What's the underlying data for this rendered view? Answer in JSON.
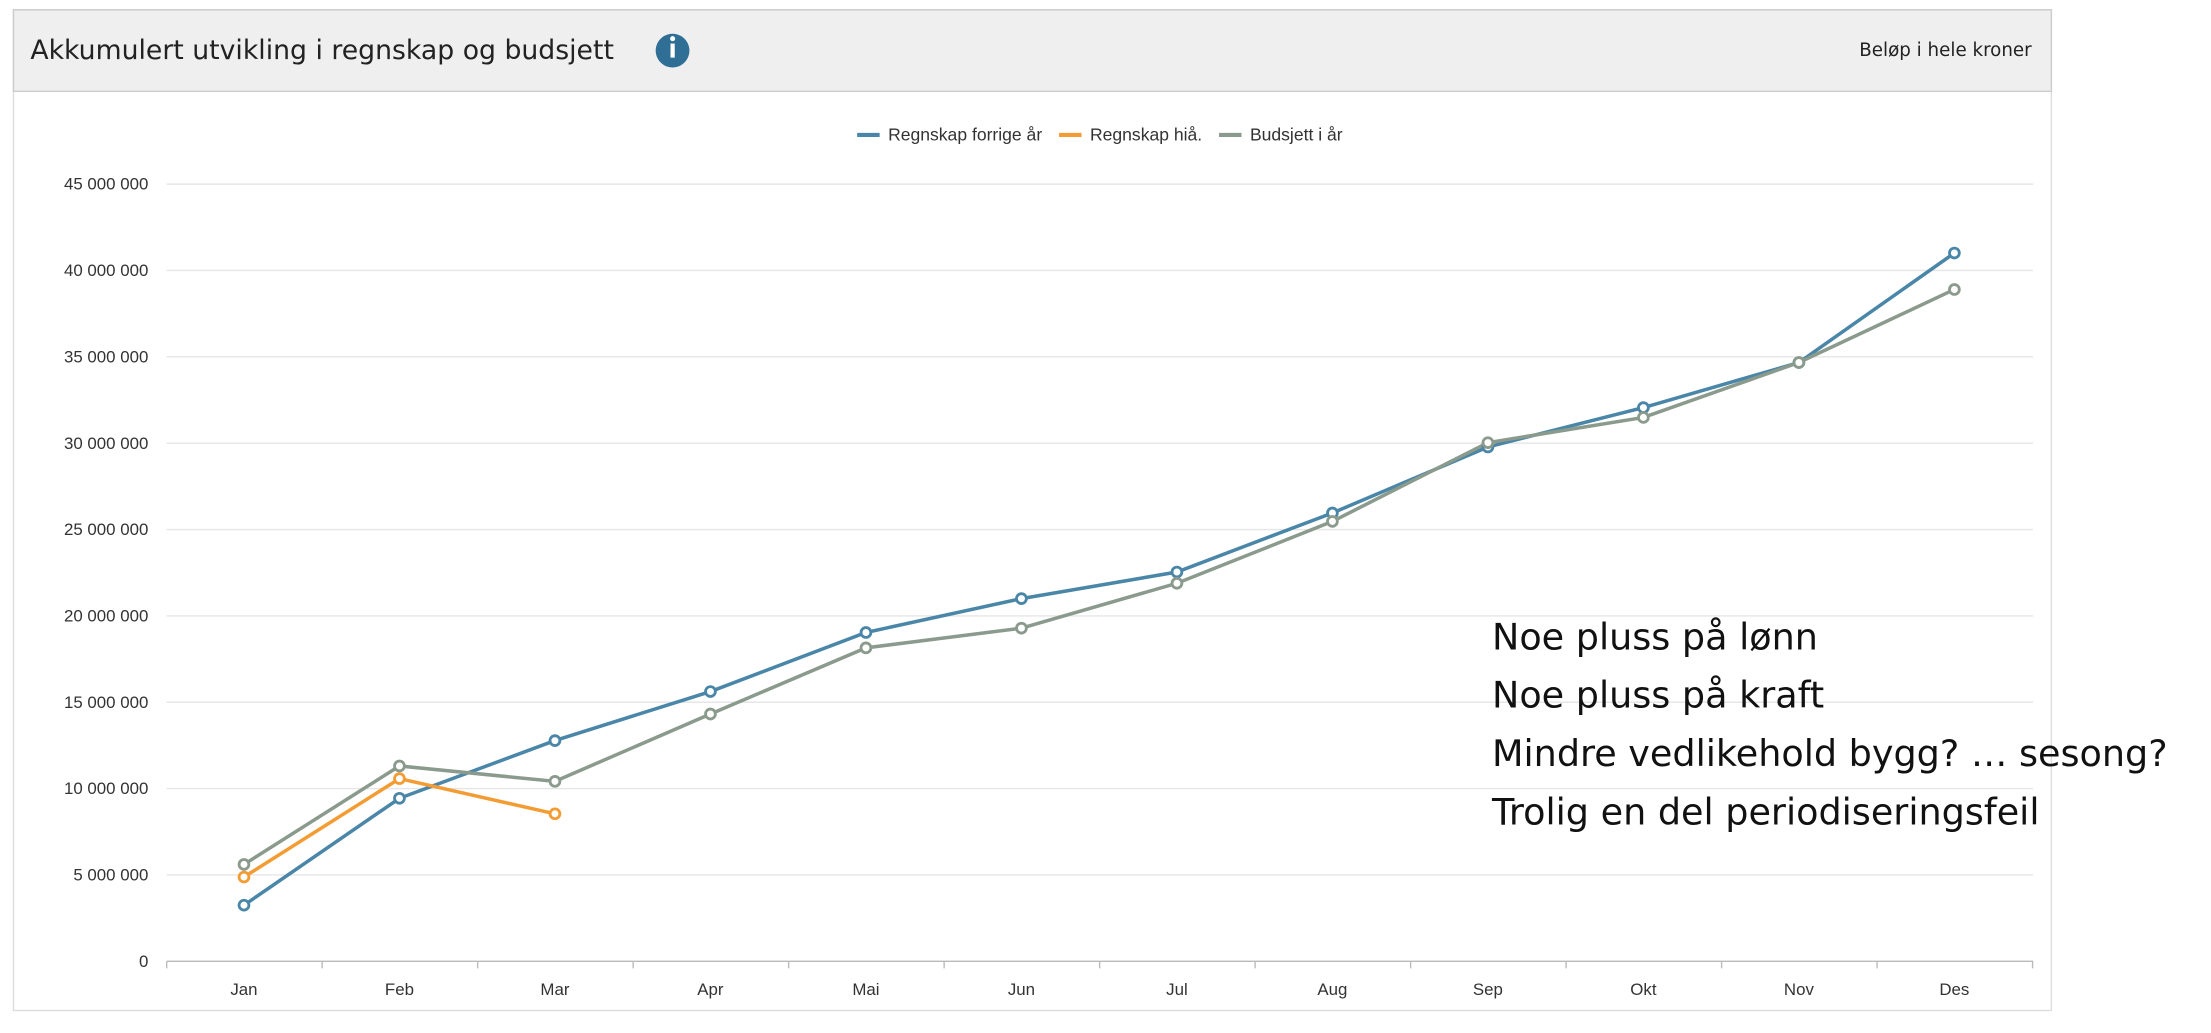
{
  "header": {
    "title": "Akkumulert utvikling i regnskap og budsjett",
    "unit_note": "Beløp i hele kroner"
  },
  "chart_data": {
    "type": "line",
    "categories": [
      "Jan",
      "Feb",
      "Mar",
      "Apr",
      "Mai",
      "Jun",
      "Jul",
      "Aug",
      "Sep",
      "Okt",
      "Nov",
      "Des"
    ],
    "series": [
      {
        "name": "Regnskap forrige år",
        "color": "#4a86a8",
        "values": [
          3250000,
          9440000,
          12780000,
          15620000,
          19040000,
          21000000,
          22540000,
          25960000,
          29780000,
          32060000,
          34670000,
          41010000
        ]
      },
      {
        "name": "Regnskap hiå.",
        "color": "#f39c34",
        "values": [
          4880000,
          10580000,
          8540000,
          null,
          null,
          null,
          null,
          null,
          null,
          null,
          null,
          null
        ]
      },
      {
        "name": "Budsjett i år",
        "color": "#8a9a8c",
        "values": [
          5610000,
          11310000,
          10420000,
          14320000,
          18150000,
          19290000,
          21890000,
          25470000,
          30030000,
          31490000,
          34670000,
          38900000
        ]
      }
    ],
    "ylim": [
      0,
      45000000
    ],
    "yticks": [
      0,
      {
        "value": 5000000,
        "label": "5 000 000"
      },
      {
        "value": 10000000,
        "label": "10 000 000"
      },
      {
        "value": 15000000,
        "label": "15 000 000"
      },
      {
        "value": 20000000,
        "label": "20 000 000"
      },
      {
        "value": 25000000,
        "label": "25 000 000"
      },
      {
        "value": 30000000,
        "label": "30 000 000"
      },
      {
        "value": 35000000,
        "label": "35 000 000"
      },
      {
        "value": 40000000,
        "label": "40 000 000"
      },
      {
        "value": 45000000,
        "label": "45 000 000"
      }
    ],
    "grid": true,
    "legend": "top",
    "annotations": [
      "Noe pluss på lønn",
      "Noe pluss på kraft",
      "Mindre vedlikehold bygg? … sesong?",
      "Trolig en del periodiseringsfeil"
    ]
  }
}
